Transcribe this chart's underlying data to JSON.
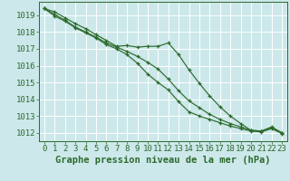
{
  "title": "Graphe pression niveau de la mer (hPa)",
  "bg_color": "#cce8ea",
  "grid_color": "#ffffff",
  "line_color": "#2d6a2d",
  "x_ticks": [
    0,
    1,
    2,
    3,
    4,
    5,
    6,
    7,
    8,
    9,
    10,
    11,
    12,
    13,
    14,
    15,
    16,
    17,
    18,
    19,
    20,
    21,
    22,
    23
  ],
  "ylim": [
    1011.5,
    1019.8
  ],
  "yticks": [
    1012,
    1013,
    1014,
    1015,
    1016,
    1017,
    1018,
    1019
  ],
  "series1": [
    1019.4,
    1019.2,
    1018.85,
    1018.5,
    1018.2,
    1017.85,
    1017.5,
    1017.15,
    1017.2,
    1017.1,
    1017.15,
    1017.15,
    1017.35,
    1016.65,
    1015.75,
    1014.95,
    1014.2,
    1013.55,
    1013.0,
    1012.55,
    1012.15,
    1012.1,
    1012.35,
    1012.0
  ],
  "series2": [
    1019.4,
    1019.05,
    1018.7,
    1018.3,
    1018.0,
    1017.7,
    1017.35,
    1017.1,
    1016.85,
    1016.55,
    1016.2,
    1015.8,
    1015.2,
    1014.5,
    1013.9,
    1013.5,
    1013.1,
    1012.8,
    1012.55,
    1012.35,
    1012.15,
    1012.1,
    1012.3,
    1012.0
  ],
  "series3": [
    1019.4,
    1018.95,
    1018.65,
    1018.25,
    1017.95,
    1017.65,
    1017.25,
    1017.0,
    1016.65,
    1016.15,
    1015.5,
    1015.0,
    1014.55,
    1013.85,
    1013.25,
    1013.0,
    1012.8,
    1012.6,
    1012.4,
    1012.25,
    1012.1,
    1012.05,
    1012.25,
    1011.95
  ],
  "tick_fontsize": 6.5,
  "label_fontsize": 7.5
}
